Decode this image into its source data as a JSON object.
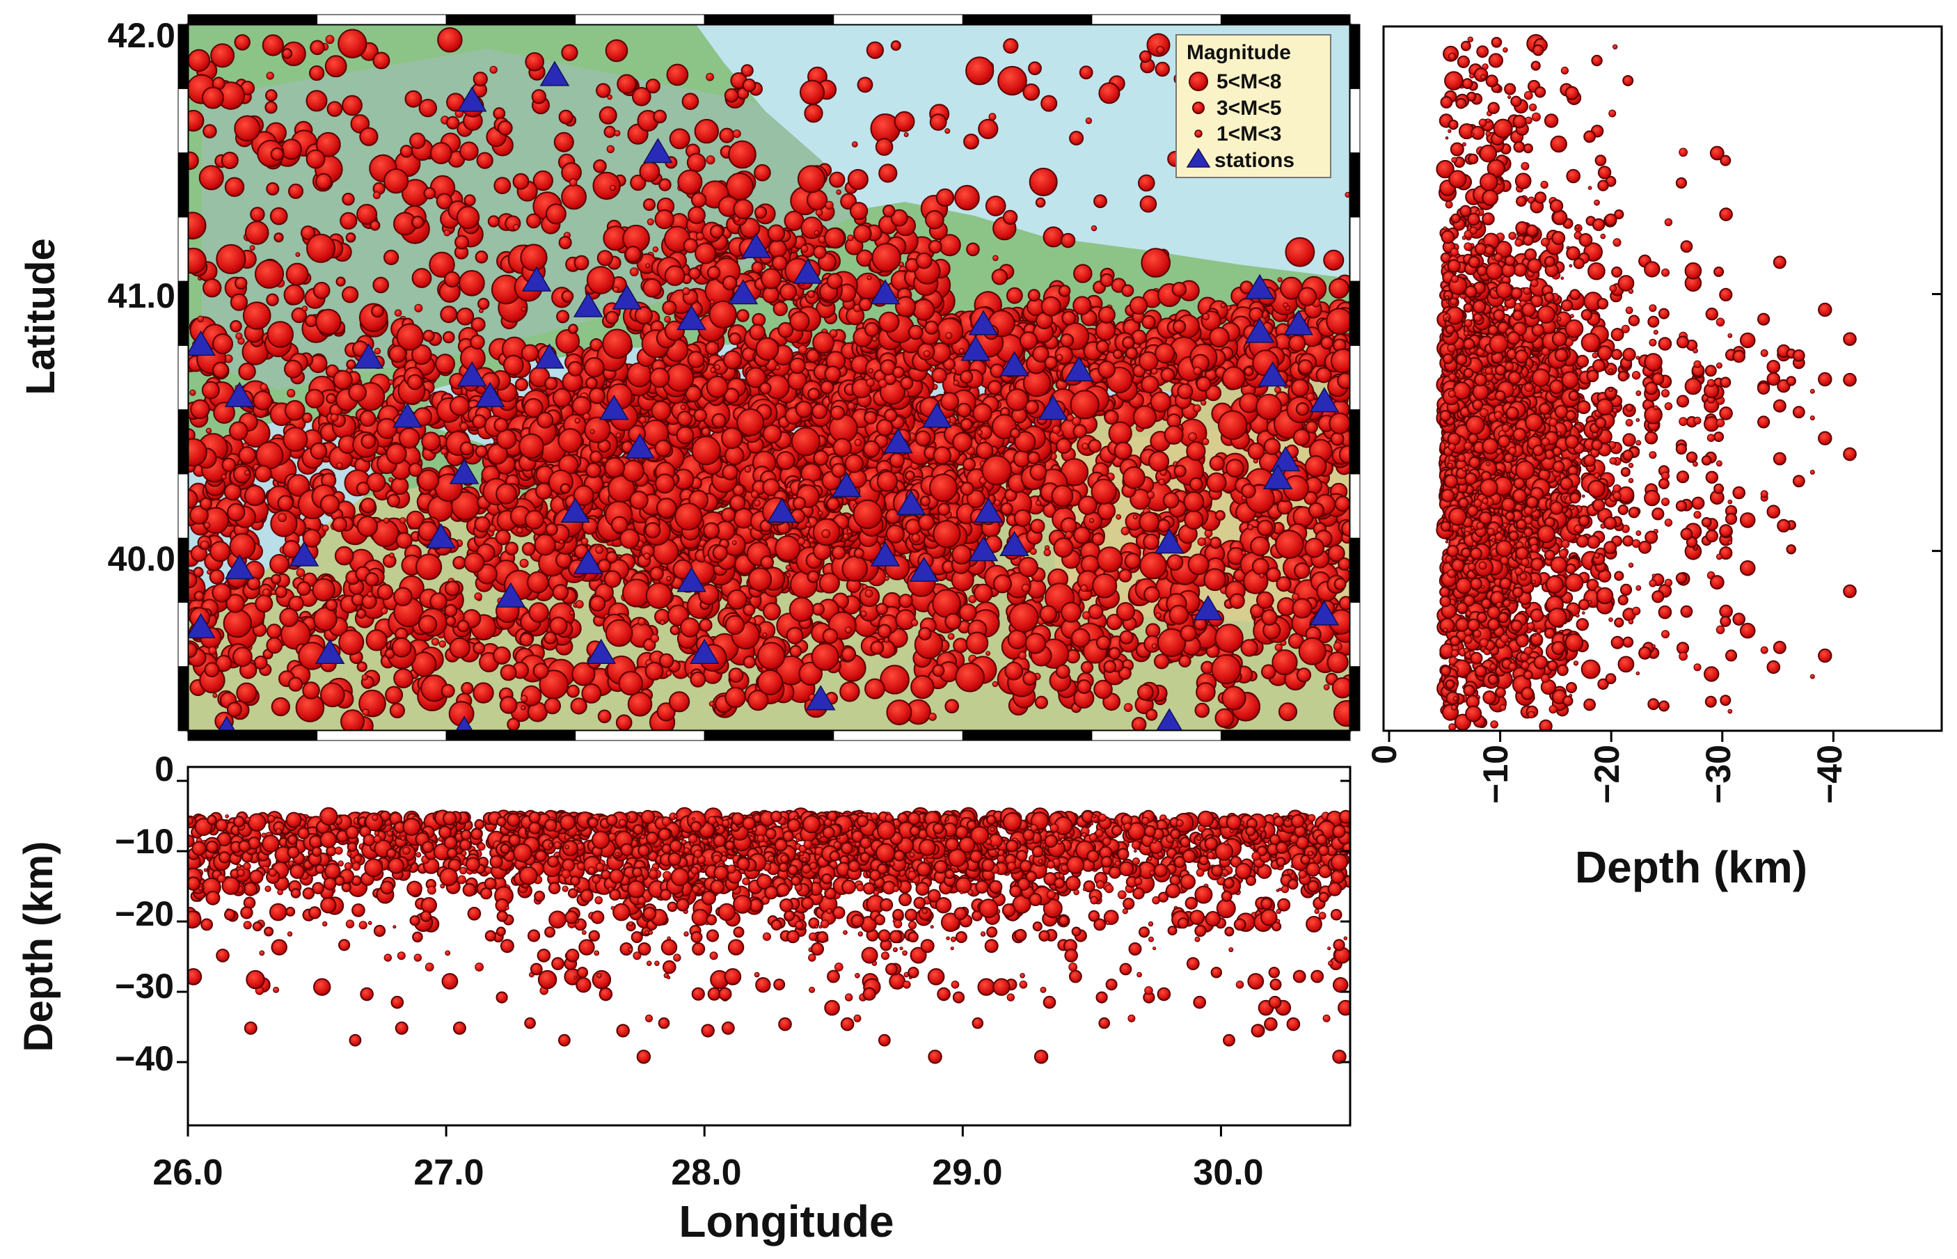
{
  "figure": {
    "map_panel": {
      "ylabel": "Latitude",
      "lat_ticks": [
        "42.0",
        "41.0",
        "40.0"
      ],
      "lat_tick_values": [
        42.0,
        41.0,
        40.0
      ],
      "lon_range": [
        26.0,
        30.5
      ],
      "lat_range": [
        39.3,
        42.05
      ]
    },
    "depth_lon_panel": {
      "xlabel": "Longitude",
      "ylabel": "Depth (km)",
      "lon_ticks": [
        "26.0",
        "27.0",
        "28.0",
        "29.0",
        "30.0"
      ],
      "lon_tick_values": [
        26.0,
        27.0,
        28.0,
        29.0,
        30.0
      ],
      "depth_ticks": [
        "0",
        "−10",
        "−20",
        "−30",
        "−40"
      ],
      "depth_tick_values": [
        0,
        -10,
        -20,
        -30,
        -40
      ],
      "depth_range": [
        0,
        -49
      ]
    },
    "depth_lat_panel": {
      "xlabel": "Depth (km)",
      "depth_ticks": [
        "0",
        "−10",
        "−20",
        "−30",
        "−40"
      ],
      "depth_tick_values": [
        0,
        -10,
        -20,
        -30,
        -40
      ],
      "depth_range": [
        0,
        -49
      ]
    },
    "legend": {
      "title": "Magnitude",
      "items": [
        {
          "label": "5<M<8",
          "symbol": "large-circle"
        },
        {
          "label": "3<M<5",
          "symbol": "medium-circle"
        },
        {
          "label": "1<M<3",
          "symbol": "small-circle"
        },
        {
          "label": "stations",
          "symbol": "triangle"
        }
      ]
    },
    "colors": {
      "event_fill": "#e01414",
      "event_stroke": "#5a0000",
      "station_fill": "#2a2ab8",
      "sea": "#bfe6ee",
      "land_low": "#86c48a",
      "land_high": "#d9c98d",
      "legend_bg": "#fbf3c8"
    }
  },
  "stations": [
    {
      "lon": 26.05,
      "lat": 40.8
    },
    {
      "lon": 26.2,
      "lat": 40.6
    },
    {
      "lon": 26.7,
      "lat": 40.75
    },
    {
      "lon": 27.1,
      "lat": 41.75
    },
    {
      "lon": 27.42,
      "lat": 41.85
    },
    {
      "lon": 27.82,
      "lat": 41.55
    },
    {
      "lon": 27.35,
      "lat": 41.05
    },
    {
      "lon": 27.55,
      "lat": 40.95
    },
    {
      "lon": 27.7,
      "lat": 40.98
    },
    {
      "lon": 27.95,
      "lat": 40.9
    },
    {
      "lon": 28.15,
      "lat": 41.0
    },
    {
      "lon": 28.2,
      "lat": 41.18
    },
    {
      "lon": 28.4,
      "lat": 41.08
    },
    {
      "lon": 28.7,
      "lat": 41.0
    },
    {
      "lon": 29.05,
      "lat": 40.78
    },
    {
      "lon": 29.08,
      "lat": 40.88
    },
    {
      "lon": 29.2,
      "lat": 40.72
    },
    {
      "lon": 29.45,
      "lat": 40.7
    },
    {
      "lon": 29.35,
      "lat": 40.55
    },
    {
      "lon": 30.15,
      "lat": 41.02
    },
    {
      "lon": 30.15,
      "lat": 40.85
    },
    {
      "lon": 30.3,
      "lat": 40.88
    },
    {
      "lon": 30.2,
      "lat": 40.68
    },
    {
      "lon": 30.4,
      "lat": 40.58
    },
    {
      "lon": 26.85,
      "lat": 40.52
    },
    {
      "lon": 27.1,
      "lat": 40.68
    },
    {
      "lon": 27.17,
      "lat": 40.6
    },
    {
      "lon": 27.4,
      "lat": 40.75
    },
    {
      "lon": 27.65,
      "lat": 40.55
    },
    {
      "lon": 27.75,
      "lat": 40.4
    },
    {
      "lon": 27.07,
      "lat": 40.3
    },
    {
      "lon": 28.75,
      "lat": 40.42
    },
    {
      "lon": 28.9,
      "lat": 40.52
    },
    {
      "lon": 28.55,
      "lat": 40.25
    },
    {
      "lon": 28.3,
      "lat": 40.15
    },
    {
      "lon": 28.8,
      "lat": 40.18
    },
    {
      "lon": 29.1,
      "lat": 40.15
    },
    {
      "lon": 27.5,
      "lat": 40.15
    },
    {
      "lon": 26.98,
      "lat": 40.05
    },
    {
      "lon": 26.2,
      "lat": 39.93
    },
    {
      "lon": 26.45,
      "lat": 39.98
    },
    {
      "lon": 27.25,
      "lat": 39.82
    },
    {
      "lon": 27.55,
      "lat": 39.95
    },
    {
      "lon": 27.95,
      "lat": 39.88
    },
    {
      "lon": 28.7,
      "lat": 39.98
    },
    {
      "lon": 28.85,
      "lat": 39.92
    },
    {
      "lon": 29.08,
      "lat": 40.0
    },
    {
      "lon": 29.2,
      "lat": 40.02
    },
    {
      "lon": 29.8,
      "lat": 40.03
    },
    {
      "lon": 30.25,
      "lat": 40.35
    },
    {
      "lon": 30.22,
      "lat": 40.28
    },
    {
      "lon": 29.95,
      "lat": 39.77
    },
    {
      "lon": 30.4,
      "lat": 39.75
    },
    {
      "lon": 26.05,
      "lat": 39.7
    },
    {
      "lon": 26.55,
      "lat": 39.6
    },
    {
      "lon": 27.6,
      "lat": 39.6
    },
    {
      "lon": 28.0,
      "lat": 39.6
    },
    {
      "lon": 28.45,
      "lat": 39.42
    },
    {
      "lon": 29.8,
      "lat": 39.33
    },
    {
      "lon": 27.07,
      "lat": 39.3
    },
    {
      "lon": 26.15,
      "lat": 39.3
    }
  ]
}
